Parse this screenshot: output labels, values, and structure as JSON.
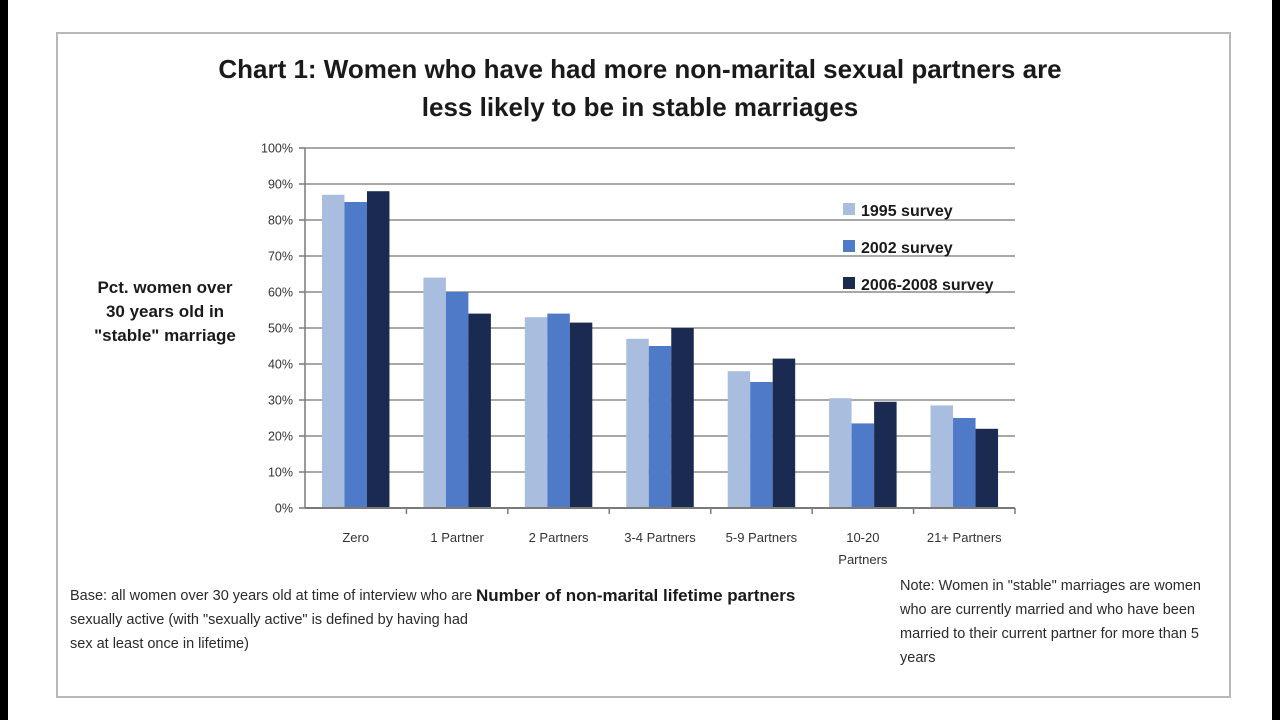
{
  "chart_data": {
    "type": "bar",
    "title": "Chart 1: Women who have had more non-marital sexual partners are less likely to be in stable marriages",
    "title_lines": [
      "Chart 1: Women who have had more non-marital sexual partners are",
      "less likely to be in stable marriages"
    ],
    "xlabel": "Number of non-marital lifetime partners",
    "ylabel_lines": [
      "Pct. women over",
      "30 years  old in",
      "\"stable\" marriage"
    ],
    "ylim": [
      0,
      100
    ],
    "yticks": [
      "0%",
      "10%",
      "20%",
      "30%",
      "40%",
      "50%",
      "60%",
      "70%",
      "80%",
      "90%",
      "100%"
    ],
    "grid": true,
    "legend_position": "top-right",
    "categories": [
      "Zero",
      "1 Partner",
      "2 Partners",
      "3-4 Partners",
      "5-9 Partners",
      "10-20 Partners",
      "21+ Partners"
    ],
    "category_label_lines": [
      [
        "Zero"
      ],
      [
        "1 Partner"
      ],
      [
        "2 Partners"
      ],
      [
        "3-4 Partners"
      ],
      [
        "5-9 Partners"
      ],
      [
        "10-20",
        "Partners"
      ],
      [
        "21+ Partners"
      ]
    ],
    "series": [
      {
        "name": "1995 survey",
        "color": "#a9bedf",
        "values": [
          87,
          64,
          53,
          47,
          38,
          30.5,
          28.5
        ]
      },
      {
        "name": "2002 survey",
        "color": "#4f7ac7",
        "values": [
          85,
          60,
          54,
          45,
          35,
          23.5,
          25
        ]
      },
      {
        "name": "2006-2008 survey",
        "color": "#1b2a50",
        "values": [
          88,
          54,
          51.5,
          50,
          41.5,
          29.5,
          22
        ]
      }
    ]
  },
  "notes": {
    "base": "Base: all women over 30 years old at time of interview who are sexually active (with \"sexually active\" is defined by having had sex at least once in lifetime)",
    "note": "Note: Women in \"stable\" marriages are women who are currently married and who have been married to their current partner for more than 5 years"
  }
}
